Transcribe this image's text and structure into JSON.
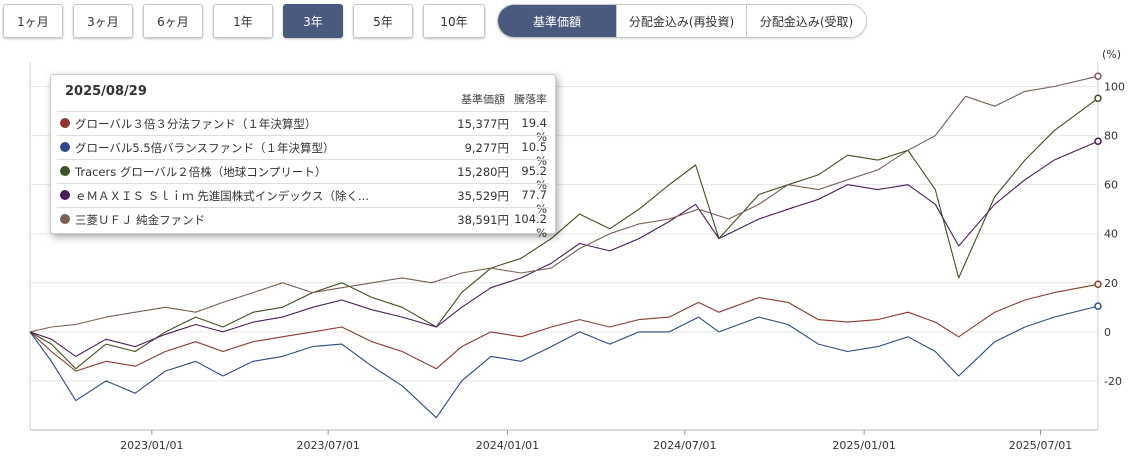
{
  "periods": [
    {
      "label": "1ヶ月",
      "active": false
    },
    {
      "label": "3ヶ月",
      "active": false
    },
    {
      "label": "6ヶ月",
      "active": false
    },
    {
      "label": "1年",
      "active": false
    },
    {
      "label": "3年",
      "active": true
    },
    {
      "label": "5年",
      "active": false
    },
    {
      "label": "10年",
      "active": false
    }
  ],
  "modes": [
    {
      "label": "基準価額",
      "active": true
    },
    {
      "label": "分配金込み(再投資)",
      "active": false
    },
    {
      "label": "分配金込み(受取)",
      "active": false
    }
  ],
  "tooltip": {
    "date": "2025/08/29",
    "col_price": "基準価額",
    "col_rate": "騰落率",
    "rows": [
      {
        "name": "グローバル３倍３分法ファンド（１年決算型）",
        "price": "15,377円",
        "rate": "19.4 %",
        "color": "#8b3a2e"
      },
      {
        "name": "グローバル5.5倍バランスファンド（１年決算型）",
        "price": "9,277円",
        "rate": "10.5 %",
        "color": "#2b4a8a"
      },
      {
        "name": "Tracers グローバル２倍株（地球コンプリート）",
        "price": "15,280円",
        "rate": "95.2 %",
        "color": "#3d5220"
      },
      {
        "name": "ｅＭＡＸＩＳ Ｓｌｉｍ 先進国株式インデックス（除く...",
        "price": "35,529円",
        "rate": "77.7 %",
        "color": "#4a1c5c"
      },
      {
        "name": "三菱ＵＦＪ 純金ファンド",
        "price": "38,591円",
        "rate": "104.2 %",
        "color": "#7a5f52"
      }
    ]
  },
  "chart_data": {
    "type": "line",
    "ylabel": "(%)",
    "ylim": [
      -40,
      110
    ],
    "yticks": [
      -20,
      0,
      20,
      40,
      60,
      80,
      100
    ],
    "xlim": [
      "2022-08-29",
      "2025-08-29"
    ],
    "xticks": [
      {
        "date": "2023-01-01",
        "label": "2023/01/01"
      },
      {
        "date": "2023-07-01",
        "label": "2023/07/01"
      },
      {
        "date": "2024-01-01",
        "label": "2024/01/01"
      },
      {
        "date": "2024-07-01",
        "label": "2024/07/01"
      },
      {
        "date": "2025-01-01",
        "label": "2025/01/01"
      },
      {
        "date": "2025-07-01",
        "label": "2025/07/01"
      }
    ],
    "series": [
      {
        "name": "グローバル３倍３分法ファンド（１年決算型）",
        "color": "#8b3a2e",
        "points": [
          [
            "2022-08-29",
            0
          ],
          [
            "2022-09-20",
            -8
          ],
          [
            "2022-10-15",
            -16
          ],
          [
            "2022-11-15",
            -12
          ],
          [
            "2022-12-15",
            -14
          ],
          [
            "2023-01-15",
            -8
          ],
          [
            "2023-02-15",
            -4
          ],
          [
            "2023-03-15",
            -8
          ],
          [
            "2023-04-15",
            -4
          ],
          [
            "2023-05-15",
            -2
          ],
          [
            "2023-06-15",
            0
          ],
          [
            "2023-07-15",
            2
          ],
          [
            "2023-08-15",
            -4
          ],
          [
            "2023-09-15",
            -8
          ],
          [
            "2023-10-20",
            -15
          ],
          [
            "2023-11-15",
            -6
          ],
          [
            "2023-12-15",
            0
          ],
          [
            "2024-01-15",
            -2
          ],
          [
            "2024-02-15",
            2
          ],
          [
            "2024-03-15",
            5
          ],
          [
            "2024-04-15",
            2
          ],
          [
            "2024-05-15",
            5
          ],
          [
            "2024-06-15",
            6
          ],
          [
            "2024-07-15",
            12
          ],
          [
            "2024-08-05",
            8
          ],
          [
            "2024-09-15",
            14
          ],
          [
            "2024-10-15",
            12
          ],
          [
            "2024-11-15",
            5
          ],
          [
            "2024-12-15",
            4
          ],
          [
            "2025-01-15",
            5
          ],
          [
            "2025-02-15",
            8
          ],
          [
            "2025-03-15",
            4
          ],
          [
            "2025-04-08",
            -2
          ],
          [
            "2025-05-15",
            8
          ],
          [
            "2025-06-15",
            13
          ],
          [
            "2025-07-15",
            16
          ],
          [
            "2025-08-29",
            19.4
          ]
        ]
      },
      {
        "name": "グローバル5.5倍バランスファンド（１年決算型）",
        "color": "#2b4a8a",
        "points": [
          [
            "2022-08-29",
            0
          ],
          [
            "2022-09-20",
            -12
          ],
          [
            "2022-10-15",
            -28
          ],
          [
            "2022-11-15",
            -20
          ],
          [
            "2022-12-15",
            -25
          ],
          [
            "2023-01-15",
            -16
          ],
          [
            "2023-02-15",
            -12
          ],
          [
            "2023-03-15",
            -18
          ],
          [
            "2023-04-15",
            -12
          ],
          [
            "2023-05-15",
            -10
          ],
          [
            "2023-06-15",
            -6
          ],
          [
            "2023-07-15",
            -5
          ],
          [
            "2023-08-15",
            -14
          ],
          [
            "2023-09-15",
            -22
          ],
          [
            "2023-10-20",
            -35
          ],
          [
            "2023-11-15",
            -20
          ],
          [
            "2023-12-15",
            -10
          ],
          [
            "2024-01-15",
            -12
          ],
          [
            "2024-02-15",
            -6
          ],
          [
            "2024-03-15",
            0
          ],
          [
            "2024-04-15",
            -5
          ],
          [
            "2024-05-15",
            0
          ],
          [
            "2024-06-15",
            0
          ],
          [
            "2024-07-15",
            6
          ],
          [
            "2024-08-05",
            0
          ],
          [
            "2024-09-15",
            6
          ],
          [
            "2024-10-15",
            3
          ],
          [
            "2024-11-15",
            -5
          ],
          [
            "2024-12-15",
            -8
          ],
          [
            "2025-01-15",
            -6
          ],
          [
            "2025-02-15",
            -2
          ],
          [
            "2025-03-15",
            -8
          ],
          [
            "2025-04-08",
            -18
          ],
          [
            "2025-05-15",
            -4
          ],
          [
            "2025-06-15",
            2
          ],
          [
            "2025-07-15",
            6
          ],
          [
            "2025-08-29",
            10.5
          ]
        ]
      },
      {
        "name": "Tracers グローバル２倍株（地球コンプリート）",
        "color": "#3d5220",
        "points": [
          [
            "2022-08-29",
            0
          ],
          [
            "2022-09-20",
            -5
          ],
          [
            "2022-10-15",
            -15
          ],
          [
            "2022-11-15",
            -5
          ],
          [
            "2022-12-15",
            -8
          ],
          [
            "2023-01-15",
            0
          ],
          [
            "2023-02-15",
            6
          ],
          [
            "2023-03-15",
            2
          ],
          [
            "2023-04-15",
            8
          ],
          [
            "2023-05-15",
            10
          ],
          [
            "2023-06-15",
            16
          ],
          [
            "2023-07-15",
            20
          ],
          [
            "2023-08-15",
            14
          ],
          [
            "2023-09-15",
            10
          ],
          [
            "2023-10-20",
            2
          ],
          [
            "2023-11-15",
            16
          ],
          [
            "2023-12-15",
            26
          ],
          [
            "2024-01-15",
            30
          ],
          [
            "2024-02-15",
            38
          ],
          [
            "2024-03-15",
            48
          ],
          [
            "2024-04-15",
            42
          ],
          [
            "2024-05-15",
            50
          ],
          [
            "2024-06-15",
            60
          ],
          [
            "2024-07-12",
            68
          ],
          [
            "2024-08-05",
            38
          ],
          [
            "2024-09-15",
            56
          ],
          [
            "2024-10-15",
            60
          ],
          [
            "2024-11-15",
            64
          ],
          [
            "2024-12-15",
            72
          ],
          [
            "2025-01-15",
            70
          ],
          [
            "2025-02-15",
            74
          ],
          [
            "2025-03-15",
            58
          ],
          [
            "2025-04-08",
            22
          ],
          [
            "2025-05-15",
            55
          ],
          [
            "2025-06-15",
            70
          ],
          [
            "2025-07-15",
            82
          ],
          [
            "2025-08-29",
            95.2
          ]
        ]
      },
      {
        "name": "ｅＭＡＸＩＳ Ｓｌｉｍ 先進国株式インデックス（除く...",
        "color": "#4a1c5c",
        "points": [
          [
            "2022-08-29",
            0
          ],
          [
            "2022-09-20",
            -3
          ],
          [
            "2022-10-15",
            -10
          ],
          [
            "2022-11-15",
            -3
          ],
          [
            "2022-12-15",
            -6
          ],
          [
            "2023-01-15",
            -1
          ],
          [
            "2023-02-15",
            3
          ],
          [
            "2023-03-15",
            0
          ],
          [
            "2023-04-15",
            4
          ],
          [
            "2023-05-15",
            6
          ],
          [
            "2023-06-15",
            10
          ],
          [
            "2023-07-15",
            13
          ],
          [
            "2023-08-15",
            9
          ],
          [
            "2023-09-15",
            6
          ],
          [
            "2023-10-20",
            2
          ],
          [
            "2023-11-15",
            10
          ],
          [
            "2023-12-15",
            18
          ],
          [
            "2024-01-15",
            22
          ],
          [
            "2024-02-15",
            28
          ],
          [
            "2024-03-15",
            36
          ],
          [
            "2024-04-15",
            33
          ],
          [
            "2024-05-15",
            38
          ],
          [
            "2024-06-15",
            45
          ],
          [
            "2024-07-12",
            52
          ],
          [
            "2024-08-05",
            38
          ],
          [
            "2024-09-15",
            46
          ],
          [
            "2024-10-15",
            50
          ],
          [
            "2024-11-15",
            54
          ],
          [
            "2024-12-15",
            60
          ],
          [
            "2025-01-15",
            58
          ],
          [
            "2025-02-15",
            60
          ],
          [
            "2025-03-15",
            52
          ],
          [
            "2025-04-08",
            35
          ],
          [
            "2025-05-15",
            52
          ],
          [
            "2025-06-15",
            62
          ],
          [
            "2025-07-15",
            70
          ],
          [
            "2025-08-29",
            77.7
          ]
        ]
      },
      {
        "name": "三菱ＵＦＪ 純金ファンド",
        "color": "#7a5f52",
        "points": [
          [
            "2022-08-29",
            0
          ],
          [
            "2022-09-20",
            2
          ],
          [
            "2022-10-15",
            3
          ],
          [
            "2022-11-15",
            6
          ],
          [
            "2022-12-15",
            8
          ],
          [
            "2023-01-15",
            10
          ],
          [
            "2023-02-15",
            8
          ],
          [
            "2023-03-15",
            12
          ],
          [
            "2023-04-15",
            16
          ],
          [
            "2023-05-15",
            20
          ],
          [
            "2023-06-15",
            16
          ],
          [
            "2023-07-15",
            18
          ],
          [
            "2023-08-15",
            20
          ],
          [
            "2023-09-15",
            22
          ],
          [
            "2023-10-15",
            20
          ],
          [
            "2023-11-15",
            24
          ],
          [
            "2023-12-15",
            26
          ],
          [
            "2024-01-15",
            24
          ],
          [
            "2024-02-15",
            26
          ],
          [
            "2024-03-15",
            34
          ],
          [
            "2024-04-15",
            40
          ],
          [
            "2024-05-15",
            44
          ],
          [
            "2024-06-15",
            46
          ],
          [
            "2024-07-15",
            50
          ],
          [
            "2024-08-15",
            46
          ],
          [
            "2024-09-15",
            52
          ],
          [
            "2024-10-15",
            60
          ],
          [
            "2024-11-15",
            58
          ],
          [
            "2024-12-15",
            62
          ],
          [
            "2025-01-15",
            66
          ],
          [
            "2025-02-15",
            74
          ],
          [
            "2025-03-15",
            80
          ],
          [
            "2025-04-15",
            96
          ],
          [
            "2025-05-15",
            92
          ],
          [
            "2025-06-15",
            98
          ],
          [
            "2025-07-15",
            100
          ],
          [
            "2025-08-29",
            104.2
          ]
        ]
      }
    ]
  }
}
